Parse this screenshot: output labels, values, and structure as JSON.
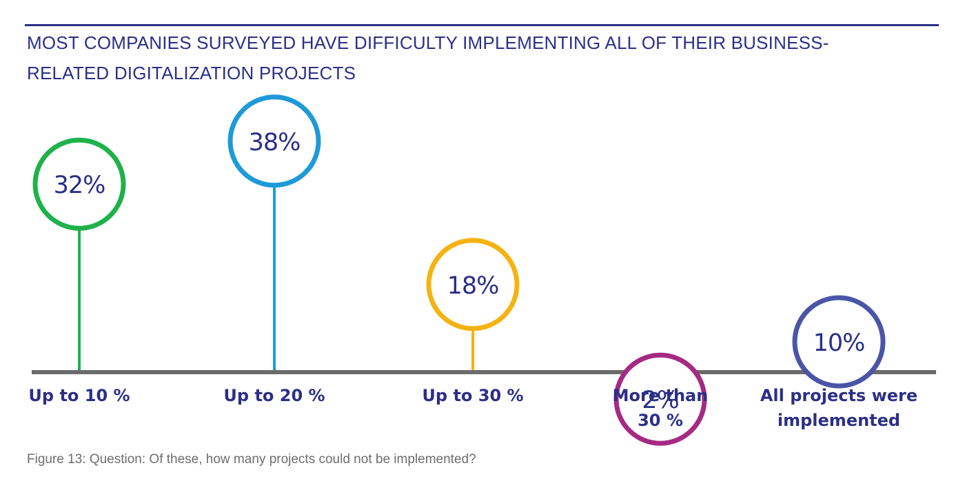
{
  "title": "MOST COMPANIES SURVEYED HAVE DIFFICULTY IMPLEMENTING ALL OF THEIR BUSINESS-RELATED DIGITALIZATION PROJECTS",
  "caption": "Figure 13: Question: Of these, how many projects could not be implemented?",
  "colors": {
    "title": "#2b2f86",
    "baseline": "#6b6b6b",
    "caption": "#6d6d6d"
  },
  "chart_data": {
    "type": "bar",
    "title": "MOST COMPANIES SURVEYED HAVE DIFFICULTY IMPLEMENTING ALL OF THEIR BUSINESS-RELATED DIGITALIZATION PROJECTS",
    "xlabel": "",
    "ylabel": "",
    "ylim": [
      0,
      40
    ],
    "grid": false,
    "categories": [
      [
        "Up to  10 %"
      ],
      [
        "Up to 20 %"
      ],
      [
        "Up to 30 %"
      ],
      [
        "More than",
        "30 %"
      ],
      [
        "All projects were",
        "implemented"
      ]
    ],
    "values": [
      32,
      38,
      18,
      2,
      10
    ],
    "value_labels": [
      "32%",
      "38%",
      "18%",
      "2%",
      "10%"
    ],
    "colors": [
      "#1fb24b",
      "#1e9ad8",
      "#f5b312",
      "#a52a84",
      "#4a55a8"
    ]
  }
}
